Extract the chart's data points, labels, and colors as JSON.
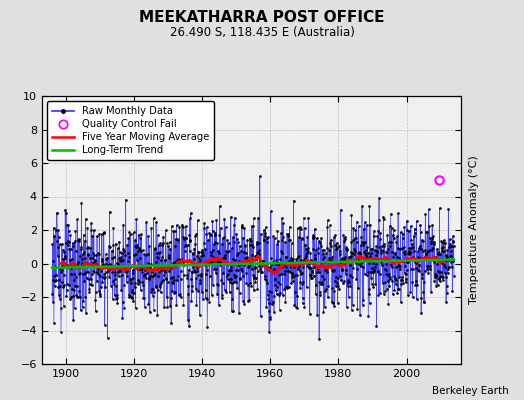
{
  "title": "MEEKATHARRA POST OFFICE",
  "subtitle": "26.490 S, 118.435 E (Australia)",
  "ylabel": "Temperature Anomaly (°C)",
  "attribution": "Berkeley Earth",
  "x_start": 1896.0,
  "x_end": 2013.917,
  "xlim_left": 1893,
  "xlim_right": 2016,
  "ylim": [
    -6,
    10
  ],
  "yticks": [
    -6,
    -4,
    -2,
    0,
    2,
    4,
    6,
    8,
    10
  ],
  "xticks": [
    1900,
    1920,
    1940,
    1960,
    1980,
    2000
  ],
  "bg_color": "#e0e0e0",
  "plot_bg_color": "#f0f0f0",
  "raw_line_color": "#3333ff",
  "raw_dot_color": "#000000",
  "moving_avg_color": "#ff0000",
  "trend_color": "#00bb00",
  "qc_fail_color": "#ff00ff",
  "qc_fail_x": 2009.5,
  "qc_fail_y": 5.0,
  "noise_std": 1.4,
  "ma_window": 60,
  "seed": 123,
  "grid_color": "#aaaaaa",
  "grid_style": "--",
  "grid_alpha": 0.7
}
